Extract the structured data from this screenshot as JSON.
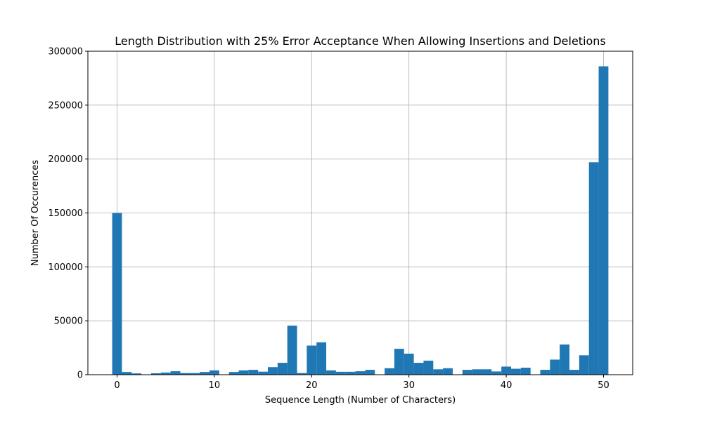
{
  "chart_data": {
    "type": "bar",
    "title": "Length Distribution with 25% Error Acceptance When Allowing Insertions and Deletions",
    "xlabel": "Sequence Length (Number of Characters)",
    "ylabel": "Number Of Occurences",
    "xlim": [
      -3,
      53
    ],
    "ylim": [
      0,
      300000
    ],
    "xticks": [
      0,
      10,
      20,
      30,
      40,
      50
    ],
    "yticks": [
      0,
      50000,
      100000,
      150000,
      200000,
      250000,
      300000
    ],
    "grid": true,
    "bar_color": "#1f77b4",
    "categories": [
      0,
      1,
      2,
      3,
      4,
      5,
      6,
      7,
      8,
      9,
      10,
      11,
      12,
      13,
      14,
      15,
      16,
      17,
      18,
      19,
      20,
      21,
      22,
      23,
      24,
      25,
      26,
      27,
      28,
      29,
      30,
      31,
      32,
      33,
      34,
      35,
      36,
      37,
      38,
      39,
      40,
      41,
      42,
      43,
      44,
      45,
      46,
      47,
      48,
      49,
      50
    ],
    "values": [
      150000,
      2500,
      1200,
      0,
      1300,
      2000,
      3200,
      1500,
      1500,
      2500,
      4000,
      0,
      2500,
      4000,
      4500,
      2800,
      7000,
      11000,
      45500,
      1500,
      27000,
      30000,
      4000,
      2700,
      2700,
      3200,
      4500,
      0,
      6000,
      24000,
      19500,
      11000,
      13000,
      5000,
      6000,
      0,
      4500,
      5000,
      5000,
      3000,
      7500,
      5500,
      6500,
      0,
      4500,
      14000,
      28000,
      4500,
      18000,
      197000,
      286000
    ]
  }
}
